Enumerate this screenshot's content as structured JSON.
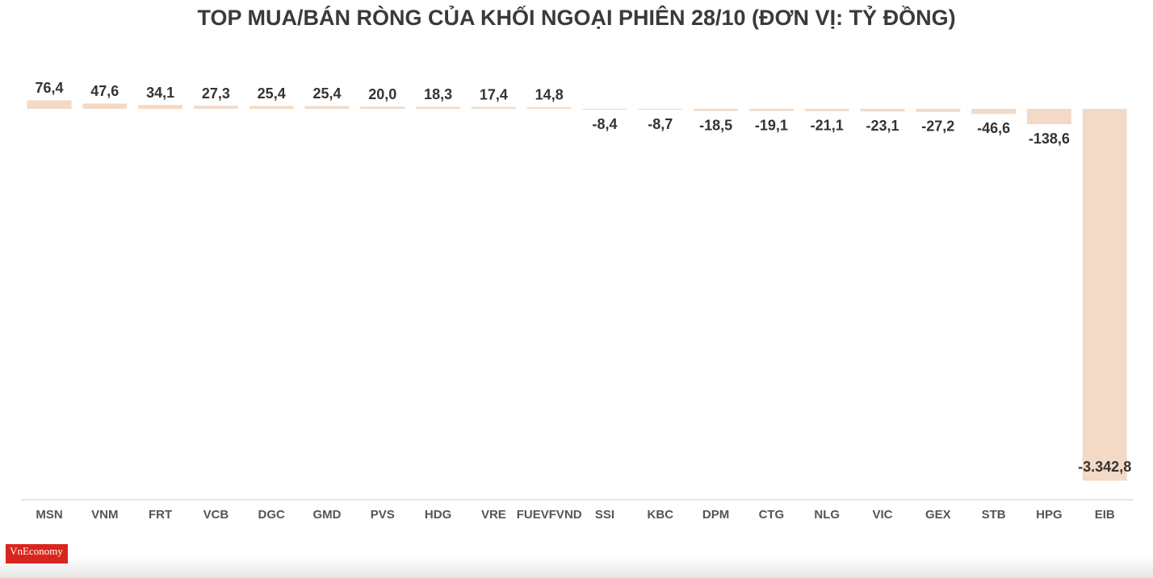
{
  "chart_data": {
    "type": "bar",
    "title": "TOP MUA/BÁN RÒNG CỦA KHỐI NGOẠI PHIÊN 28/10 (ĐƠN VỊ: TỶ ĐỒNG)",
    "categories": [
      "MSN",
      "VNM",
      "FRT",
      "VCB",
      "DGC",
      "GMD",
      "PVS",
      "HDG",
      "VRE",
      "FUEVFVND",
      "SSI",
      "KBC",
      "DPM",
      "CTG",
      "NLG",
      "VIC",
      "GEX",
      "STB",
      "HPG",
      "EIB"
    ],
    "values": [
      76.4,
      47.6,
      34.1,
      27.3,
      25.4,
      25.4,
      20.0,
      18.3,
      17.4,
      14.8,
      -8.4,
      -8.7,
      -18.5,
      -19.1,
      -21.1,
      -23.1,
      -27.2,
      -46.6,
      -138.6,
      -3342.8
    ],
    "value_labels": [
      "76,4",
      "47,6",
      "34,1",
      "27,3",
      "25,4",
      "25,4",
      "20,0",
      "18,3",
      "17,4",
      "14,8",
      "-8,4",
      "-8,7",
      "-18,5",
      "-19,1",
      "-21,1",
      "-23,1",
      "-27,2",
      "-46,6",
      "-138,6",
      "-3.342,8"
    ],
    "color": "#f3dac6",
    "ylim": [
      -3500,
      200
    ],
    "logo": "VnEconomy"
  }
}
